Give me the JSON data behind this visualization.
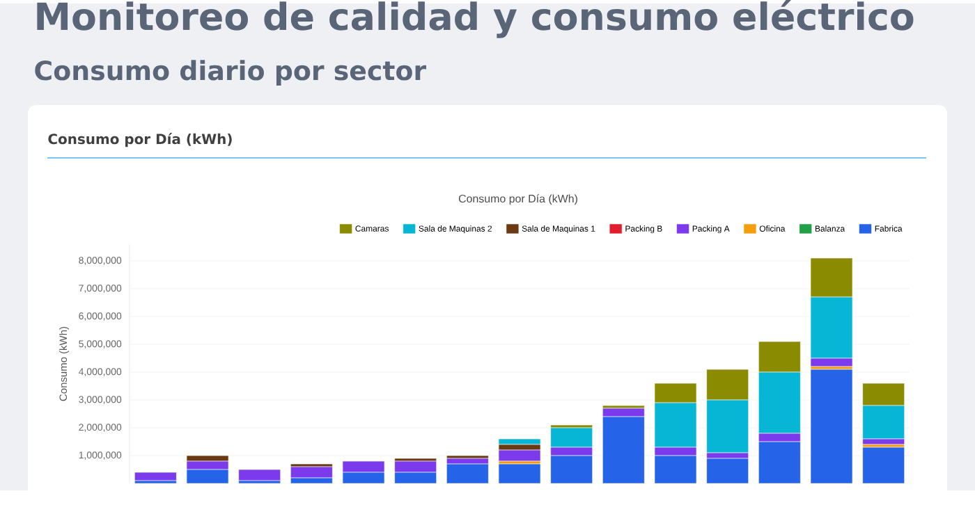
{
  "chart_data": {
    "type": "bar",
    "title": "Monitoreo de calidad y consumo eléctrico",
    "subtitle": "Consumo diario por sector",
    "annotations": [
      "Consumo por Día (kWh)",
      "Consumo por Día (kWh)"
    ],
    "ylabel": "Consumo (kWh)",
    "categories": [
      null,
      null,
      null,
      null,
      null,
      null,
      null,
      null,
      null,
      null,
      null,
      null,
      null,
      null,
      null
    ],
    "stacked": true,
    "grid": "y",
    "legend": "top right",
    "ylim": [
      0,
      8600000
    ],
    "yticks": [
      {
        "value": 1000000,
        "label": "1,000,000"
      },
      {
        "value": 2000000,
        "label": "2,000,000"
      },
      {
        "value": 3000000,
        "label": "3,000,000"
      },
      {
        "value": 4000000,
        "label": "4,000,000"
      },
      {
        "value": 5000000,
        "label": "5,000,000"
      },
      {
        "value": 6000000,
        "label": "6,000,000"
      },
      {
        "value": 7000000,
        "label": "7,000,000"
      },
      {
        "value": 8000000,
        "label": "8,000,000"
      }
    ],
    "series": [
      {
        "name": "Fabrica",
        "color": "#2563e8",
        "values": [
          100000,
          500000,
          100000,
          200000,
          400000,
          400000,
          700000,
          700000,
          1000000,
          2400000,
          1000000,
          900000,
          1500000,
          4100000,
          1300000
        ]
      },
      {
        "name": "Balanza",
        "color": "#22a045",
        "values": [
          0,
          0,
          0,
          0,
          0,
          0,
          0,
          0,
          0,
          0,
          0,
          0,
          0,
          0,
          0
        ]
      },
      {
        "name": "Oficina",
        "color": "#f59e0b",
        "values": [
          0,
          0,
          0,
          0,
          0,
          0,
          0,
          100000,
          0,
          0,
          0,
          0,
          0,
          100000,
          100000
        ]
      },
      {
        "name": "Packing A",
        "color": "#7c3aed",
        "values": [
          300000,
          300000,
          400000,
          400000,
          400000,
          400000,
          200000,
          400000,
          300000,
          300000,
          300000,
          200000,
          300000,
          300000,
          200000
        ]
      },
      {
        "name": "Packing B",
        "color": "#e11d2e",
        "values": [
          0,
          0,
          0,
          0,
          0,
          0,
          0,
          0,
          0,
          0,
          0,
          0,
          0,
          0,
          0
        ]
      },
      {
        "name": "Sala de Maquinas 1",
        "color": "#6b3a12",
        "values": [
          0,
          200000,
          0,
          100000,
          0,
          100000,
          100000,
          200000,
          0,
          0,
          0,
          0,
          0,
          0,
          0
        ]
      },
      {
        "name": "Sala de Maquinas 2",
        "color": "#06b6d4",
        "values": [
          0,
          0,
          0,
          0,
          0,
          0,
          0,
          200000,
          700000,
          0,
          1600000,
          1900000,
          2200000,
          2200000,
          1200000
        ]
      },
      {
        "name": "Camaras",
        "color": "#8b8b00",
        "values": [
          0,
          0,
          0,
          0,
          0,
          0,
          0,
          0,
          100000,
          100000,
          700000,
          1100000,
          1100000,
          1400000,
          800000
        ]
      }
    ]
  }
}
